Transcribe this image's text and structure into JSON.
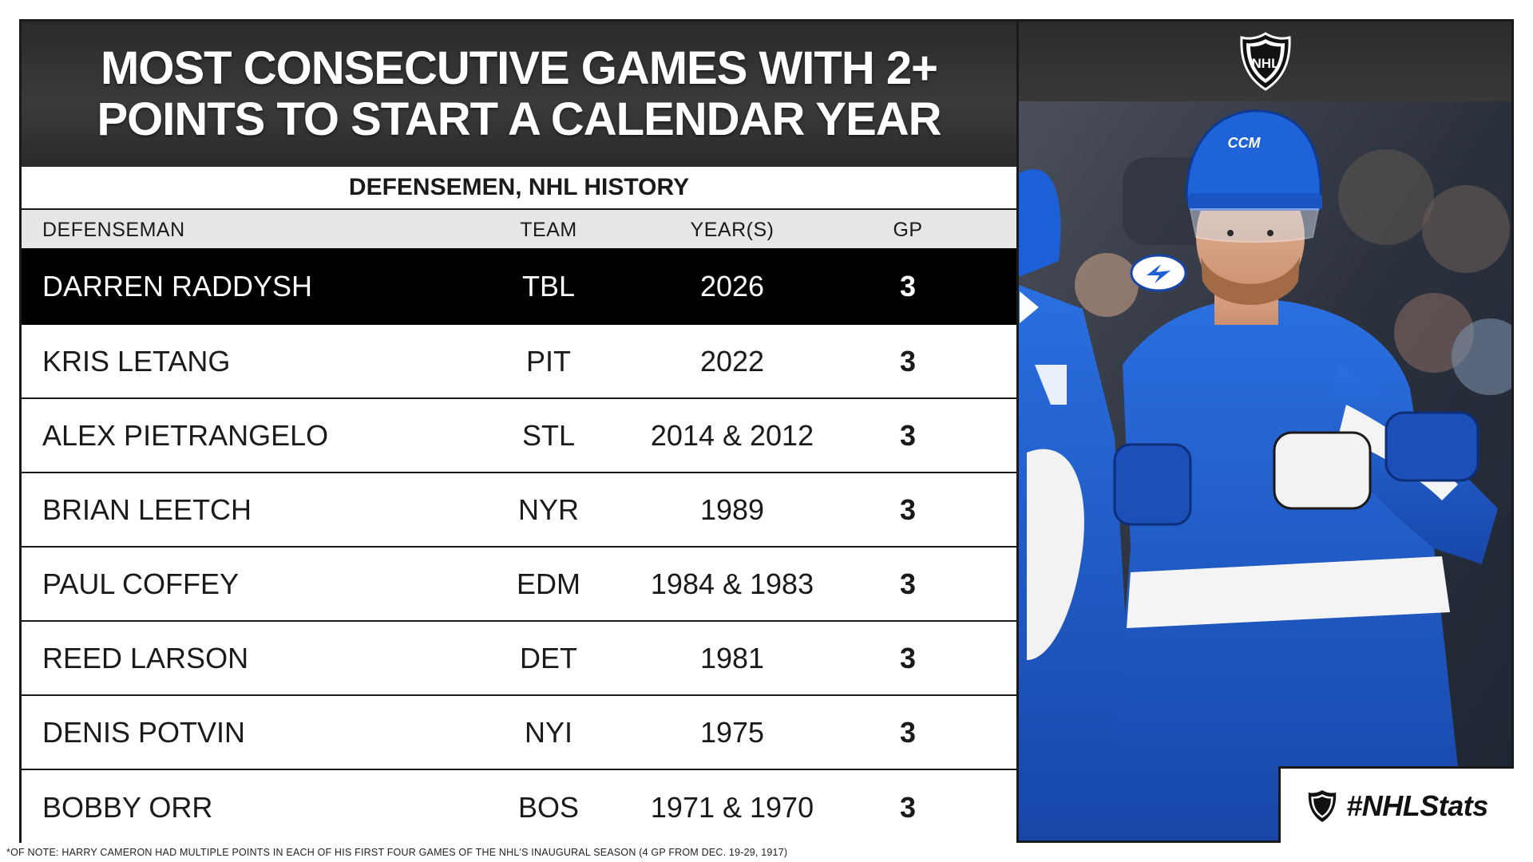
{
  "title": {
    "line1": "MOST CONSECUTIVE GAMES WITH 2+",
    "line2": "POINTS TO START A CALENDAR YEAR"
  },
  "subtitle": "DEFENSEMEN, NHL HISTORY",
  "columns": {
    "name": "DEFENSEMAN",
    "team": "TEAM",
    "years": "YEAR(S)",
    "gp": "GP"
  },
  "rows": [
    {
      "name": "DARREN RADDYSH",
      "team": "TBL",
      "years": "2026",
      "gp": "3",
      "highlight": true
    },
    {
      "name": "KRIS LETANG",
      "team": "PIT",
      "years": "2022",
      "gp": "3"
    },
    {
      "name": "ALEX PIETRANGELO",
      "team": "STL",
      "years": "2014 & 2012",
      "gp": "3"
    },
    {
      "name": "BRIAN LEETCH",
      "team": "NYR",
      "years": "1989",
      "gp": "3"
    },
    {
      "name": "PAUL COFFEY",
      "team": "EDM",
      "years": "1984 & 1983",
      "gp": "3"
    },
    {
      "name": "REED LARSON",
      "team": "DET",
      "years": "1981",
      "gp": "3"
    },
    {
      "name": "DENIS POTVIN",
      "team": "NYI",
      "years": "1975",
      "gp": "3"
    },
    {
      "name": "BOBBY ORR",
      "team": "BOS",
      "years": "1971 & 1970",
      "gp": "3"
    }
  ],
  "logo": {
    "text": "NHL",
    "icon": "nhl-shield-logo"
  },
  "hashtag": "#NHLStats",
  "footnote": "*OF NOTE: HARRY CAMERON HAD MULTIPLE POINTS IN EACH OF HIS FIRST FOUR GAMES OF THE NHL'S INAUGURAL SEASON (4 GP FROM DEC. 19-29, 1917)",
  "photo": {
    "description_icon": "player-photo",
    "jersey_text": "CCM"
  },
  "colors": {
    "highlight_row": "#000000",
    "title_bg": "#2f2f2f",
    "jersey_blue": "#1d5fd6"
  }
}
